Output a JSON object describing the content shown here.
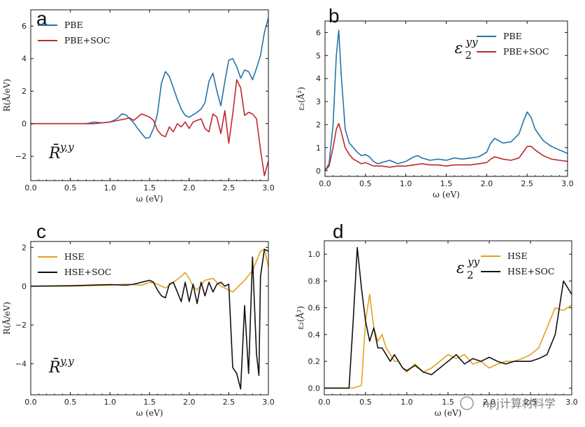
{
  "watermark": "npj计算材料学",
  "chart_data": [
    {
      "id": "a",
      "type": "line",
      "panel_letter": "a",
      "xlabel": "ω (eV)",
      "ylabel": "R(Å/eV)",
      "xlim": [
        0,
        3.0
      ],
      "ylim": [
        -3.5,
        7.0
      ],
      "xticks": [
        0.0,
        0.5,
        1.0,
        1.5,
        2.0,
        2.5,
        3.0
      ],
      "xtick_labels": [
        "0.0",
        "0.5",
        "1.0",
        "1.5",
        "2.0",
        "2.5",
        "3.0"
      ],
      "yticks": [
        -2,
        0,
        2,
        4,
        6
      ],
      "ytick_labels": [
        "−2",
        "0",
        "2",
        "4",
        "6"
      ],
      "legend": [
        "PBE",
        "PBE+SOC"
      ],
      "legend_position": "top-left",
      "annotation": {
        "base": "R̄",
        "sup": "y,y"
      },
      "annotation_position": "bottom-left",
      "series": [
        {
          "name": "PBE",
          "color": "#2474a8",
          "x": [
            0,
            0.7,
            0.8,
            0.9,
            1.0,
            1.05,
            1.1,
            1.15,
            1.2,
            1.25,
            1.3,
            1.35,
            1.4,
            1.45,
            1.5,
            1.55,
            1.6,
            1.65,
            1.7,
            1.75,
            1.8,
            1.85,
            1.9,
            1.95,
            2.0,
            2.05,
            2.1,
            2.15,
            2.2,
            2.25,
            2.3,
            2.35,
            2.4,
            2.45,
            2.5,
            2.55,
            2.6,
            2.65,
            2.7,
            2.75,
            2.8,
            2.85,
            2.9,
            2.95,
            3.0
          ],
          "values": [
            0,
            0,
            0.1,
            0.05,
            0.1,
            0.2,
            0.35,
            0.6,
            0.55,
            0.3,
            0.05,
            -0.3,
            -0.6,
            -0.9,
            -0.85,
            -0.3,
            0.6,
            2.5,
            3.2,
            2.9,
            2.2,
            1.5,
            0.9,
            0.5,
            0.4,
            0.55,
            0.7,
            0.9,
            1.3,
            2.6,
            3.1,
            2.0,
            1.1,
            2.6,
            3.9,
            4.0,
            3.5,
            2.8,
            3.3,
            3.2,
            2.7,
            3.4,
            4.2,
            5.6,
            6.5
          ]
        },
        {
          "name": "PBE+SOC",
          "color": "#c0272d",
          "x": [
            0,
            0.8,
            0.9,
            1.0,
            1.1,
            1.2,
            1.25,
            1.3,
            1.35,
            1.4,
            1.45,
            1.5,
            1.55,
            1.6,
            1.65,
            1.7,
            1.75,
            1.8,
            1.85,
            1.9,
            1.95,
            2.0,
            2.05,
            2.1,
            2.15,
            2.2,
            2.25,
            2.3,
            2.35,
            2.4,
            2.45,
            2.5,
            2.55,
            2.6,
            2.65,
            2.7,
            2.75,
            2.8,
            2.85,
            2.9,
            2.95,
            3.0
          ],
          "values": [
            0,
            0,
            0.05,
            0.1,
            0.2,
            0.3,
            0.35,
            0.2,
            0.4,
            0.6,
            0.5,
            0.4,
            0.2,
            -0.4,
            -0.7,
            -0.8,
            -0.2,
            -0.5,
            0.0,
            -0.2,
            0.1,
            -0.3,
            0.1,
            0.2,
            0.3,
            -0.3,
            -0.5,
            0.6,
            0.4,
            -0.6,
            0.8,
            -1.2,
            0.6,
            2.7,
            2.2,
            0.5,
            0.7,
            0.6,
            0.3,
            -1.6,
            -3.2,
            -2.3
          ]
        }
      ]
    },
    {
      "id": "b",
      "type": "line",
      "panel_letter": "b",
      "xlabel": "ω (eV)",
      "ylabel": "ε₂(Å²)",
      "xlim": [
        0,
        3.0
      ],
      "ylim": [
        -0.25,
        6.5
      ],
      "xticks": [
        0.0,
        0.5,
        1.0,
        1.5,
        2.0,
        2.5,
        3.0
      ],
      "xtick_labels": [
        "0.0",
        "0.5",
        "1.0",
        "1.5",
        "2.0",
        "2.5",
        "3.0"
      ],
      "yticks": [
        0,
        1,
        2,
        3,
        4,
        5,
        6
      ],
      "ytick_labels": [
        "0",
        "1",
        "2",
        "3",
        "4",
        "5",
        "6"
      ],
      "legend": [
        "PBE",
        "PBE+SOC"
      ],
      "legend_position": "top-right",
      "annotation": {
        "base": "ε",
        "sub": "2",
        "sup": "yy"
      },
      "annotation_position": "top-center",
      "series": [
        {
          "name": "PBE",
          "color": "#2474a8",
          "x": [
            0,
            0.05,
            0.1,
            0.14,
            0.17,
            0.2,
            0.25,
            0.3,
            0.35,
            0.4,
            0.45,
            0.5,
            0.55,
            0.6,
            0.65,
            0.7,
            0.8,
            0.9,
            1.0,
            1.1,
            1.15,
            1.2,
            1.3,
            1.4,
            1.5,
            1.6,
            1.7,
            1.8,
            1.9,
            2.0,
            2.05,
            2.1,
            2.15,
            2.2,
            2.3,
            2.4,
            2.45,
            2.5,
            2.55,
            2.6,
            2.7,
            2.8,
            2.9,
            3.0
          ],
          "values": [
            0,
            0.3,
            2.0,
            5.0,
            6.1,
            4.2,
            1.8,
            1.2,
            1.0,
            0.8,
            0.65,
            0.7,
            0.6,
            0.4,
            0.3,
            0.35,
            0.45,
            0.3,
            0.4,
            0.6,
            0.65,
            0.55,
            0.45,
            0.5,
            0.45,
            0.55,
            0.5,
            0.55,
            0.6,
            0.8,
            1.2,
            1.4,
            1.3,
            1.2,
            1.25,
            1.6,
            2.1,
            2.55,
            2.3,
            1.8,
            1.3,
            1.05,
            0.9,
            0.75
          ]
        },
        {
          "name": "PBE+SOC",
          "color": "#c0272d",
          "x": [
            0,
            0.05,
            0.1,
            0.14,
            0.17,
            0.2,
            0.25,
            0.3,
            0.35,
            0.4,
            0.45,
            0.5,
            0.6,
            0.7,
            0.8,
            0.9,
            1.0,
            1.1,
            1.2,
            1.3,
            1.4,
            1.5,
            1.6,
            1.7,
            1.8,
            1.9,
            2.0,
            2.05,
            2.1,
            2.15,
            2.2,
            2.3,
            2.4,
            2.45,
            2.5,
            2.55,
            2.6,
            2.7,
            2.8,
            2.9,
            3.0
          ],
          "values": [
            0,
            0.2,
            1.0,
            1.8,
            2.05,
            1.7,
            1.0,
            0.7,
            0.5,
            0.4,
            0.3,
            0.35,
            0.2,
            0.2,
            0.15,
            0.2,
            0.2,
            0.25,
            0.3,
            0.25,
            0.25,
            0.2,
            0.25,
            0.25,
            0.25,
            0.3,
            0.35,
            0.5,
            0.6,
            0.55,
            0.5,
            0.45,
            0.55,
            0.8,
            1.05,
            1.05,
            0.9,
            0.65,
            0.5,
            0.45,
            0.4
          ]
        }
      ]
    },
    {
      "id": "c",
      "type": "line",
      "panel_letter": "c",
      "xlabel": "ω (eV)",
      "ylabel": "R(Å/eV)",
      "xlim": [
        0,
        3.0
      ],
      "ylim": [
        -5.6,
        2.3
      ],
      "xticks": [
        0.0,
        0.5,
        1.0,
        1.5,
        2.0,
        2.5,
        3.0
      ],
      "xtick_labels": [
        "0.0",
        "0.5",
        "1.0",
        "1.5",
        "2.0",
        "2.5",
        "3.0"
      ],
      "yticks": [
        -4,
        -2,
        0,
        2
      ],
      "ytick_labels": [
        "−4",
        "−2",
        "0",
        "2"
      ],
      "legend": [
        "HSE",
        "HSE+SOC"
      ],
      "legend_position": "top-left",
      "annotation": {
        "base": "R̄",
        "sup": "y,y"
      },
      "annotation_position": "bottom-left",
      "series": [
        {
          "name": "HSE",
          "color": "#e3a21a",
          "x": [
            0,
            0.5,
            1.0,
            1.2,
            1.4,
            1.5,
            1.6,
            1.7,
            1.8,
            1.9,
            1.95,
            2.0,
            2.05,
            2.1,
            2.2,
            2.3,
            2.4,
            2.5,
            2.55,
            2.6,
            2.7,
            2.8,
            2.9,
            2.95,
            3.0
          ],
          "values": [
            0,
            0,
            0.05,
            0.1,
            0.05,
            0.2,
            0.1,
            -0.1,
            0.2,
            0.5,
            0.7,
            0.4,
            0.0,
            -0.2,
            0.3,
            0.4,
            0.0,
            -0.2,
            -0.3,
            -0.1,
            0.3,
            0.8,
            1.8,
            1.9,
            1.0
          ]
        },
        {
          "name": "HSE+SOC",
          "color": "#111111",
          "x": [
            0,
            0.5,
            1.0,
            1.2,
            1.3,
            1.4,
            1.5,
            1.55,
            1.6,
            1.65,
            1.7,
            1.75,
            1.8,
            1.85,
            1.9,
            1.95,
            2.0,
            2.05,
            2.1,
            2.15,
            2.2,
            2.25,
            2.3,
            2.35,
            2.4,
            2.45,
            2.5,
            2.55,
            2.6,
            2.65,
            2.7,
            2.75,
            2.8,
            2.85,
            2.88,
            2.9,
            2.95,
            3.0
          ],
          "values": [
            0,
            0.02,
            0.08,
            0.05,
            0.1,
            0.2,
            0.3,
            0.2,
            -0.2,
            -0.5,
            -0.6,
            0.1,
            0.2,
            -0.3,
            -0.8,
            0.2,
            -0.8,
            0.1,
            -0.9,
            0.2,
            -0.5,
            0.2,
            -0.3,
            0.1,
            0.2,
            0.0,
            0.1,
            -4.2,
            -4.5,
            -5.3,
            -1.0,
            -4.5,
            1.5,
            -3.5,
            -4.6,
            0.5,
            1.9,
            1.8
          ]
        }
      ]
    },
    {
      "id": "d",
      "type": "line",
      "panel_letter": "d",
      "xlabel": "ω (eV)",
      "ylabel": "ε₂(Å²)",
      "xlim": [
        0,
        3.0
      ],
      "ylim": [
        -0.05,
        1.1
      ],
      "xticks": [
        0.0,
        0.5,
        1.0,
        1.5,
        2.0,
        2.5,
        3.0
      ],
      "xtick_labels": [
        "0.0",
        "0.5",
        "1.0",
        "1.5",
        "2.0",
        "2.5",
        "3.0"
      ],
      "yticks": [
        0.0,
        0.2,
        0.4,
        0.6,
        0.8,
        1.0
      ],
      "ytick_labels": [
        "0.0",
        "0.2",
        "0.4",
        "0.6",
        "0.8",
        "1.0"
      ],
      "legend": [
        "HSE",
        "HSE+SOC"
      ],
      "legend_position": "top-right",
      "annotation": {
        "base": "ε",
        "sub": "2",
        "sup": "yy"
      },
      "annotation_position": "top-center",
      "series": [
        {
          "name": "HSE",
          "color": "#e3a21a",
          "x": [
            0,
            0.35,
            0.45,
            0.5,
            0.55,
            0.6,
            0.65,
            0.7,
            0.75,
            0.8,
            0.85,
            0.9,
            0.95,
            1.0,
            1.05,
            1.1,
            1.15,
            1.2,
            1.3,
            1.4,
            1.5,
            1.6,
            1.7,
            1.8,
            1.9,
            2.0,
            2.1,
            2.2,
            2.3,
            2.4,
            2.5,
            2.6,
            2.7,
            2.8,
            2.9,
            3.0
          ],
          "values": [
            0,
            0,
            0.02,
            0.5,
            0.7,
            0.45,
            0.35,
            0.4,
            0.3,
            0.25,
            0.2,
            0.2,
            0.15,
            0.12,
            0.15,
            0.18,
            0.15,
            0.12,
            0.15,
            0.2,
            0.25,
            0.22,
            0.25,
            0.18,
            0.2,
            0.15,
            0.18,
            0.2,
            0.2,
            0.22,
            0.25,
            0.3,
            0.45,
            0.6,
            0.58,
            0.62
          ]
        },
        {
          "name": "HSE+SOC",
          "color": "#111111",
          "x": [
            0,
            0.3,
            0.35,
            0.4,
            0.45,
            0.5,
            0.55,
            0.6,
            0.65,
            0.7,
            0.75,
            0.8,
            0.85,
            0.9,
            0.95,
            1.0,
            1.1,
            1.2,
            1.3,
            1.4,
            1.5,
            1.6,
            1.7,
            1.8,
            1.9,
            2.0,
            2.1,
            2.2,
            2.3,
            2.4,
            2.5,
            2.6,
            2.7,
            2.8,
            2.85,
            2.9,
            2.95,
            3.0
          ],
          "values": [
            0,
            0,
            0.5,
            1.05,
            0.75,
            0.5,
            0.35,
            0.45,
            0.3,
            0.3,
            0.25,
            0.2,
            0.25,
            0.2,
            0.15,
            0.13,
            0.17,
            0.12,
            0.1,
            0.15,
            0.2,
            0.25,
            0.18,
            0.22,
            0.2,
            0.23,
            0.2,
            0.18,
            0.2,
            0.2,
            0.2,
            0.22,
            0.25,
            0.4,
            0.6,
            0.8,
            0.75,
            0.7
          ]
        }
      ]
    }
  ]
}
